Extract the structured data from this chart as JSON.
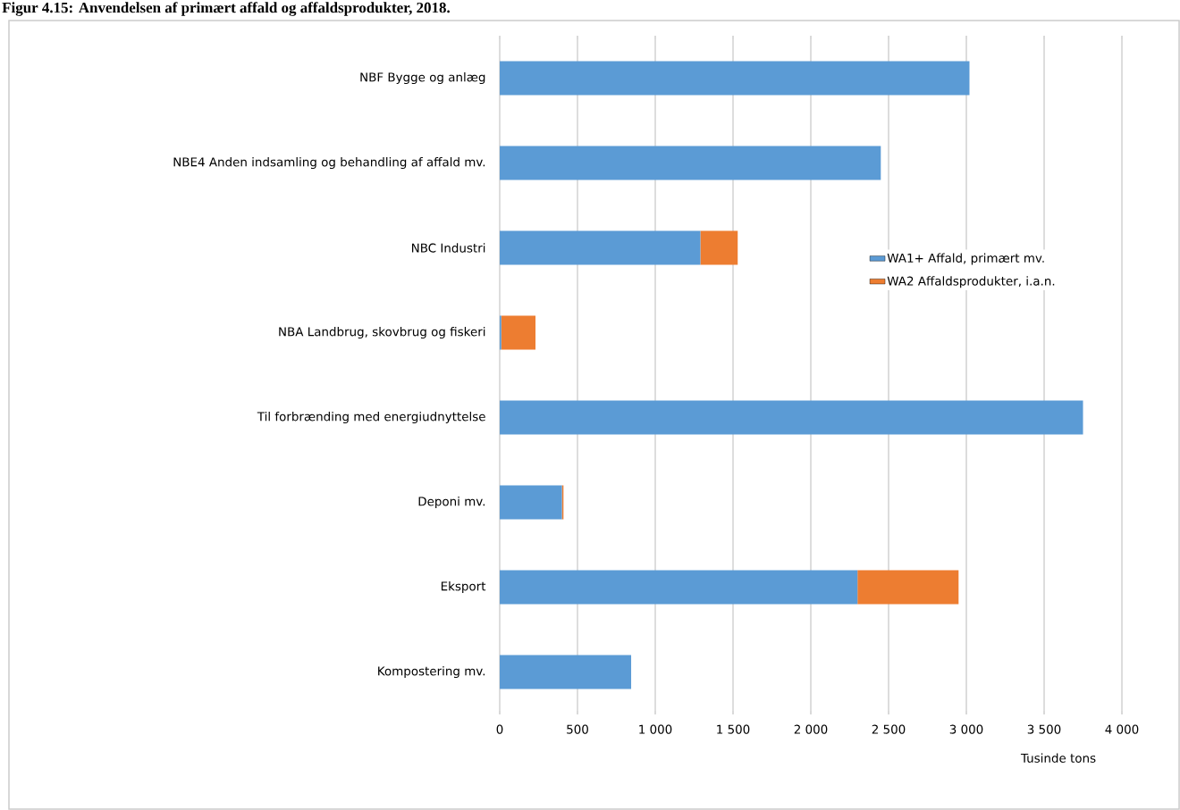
{
  "chart_data": {
    "type": "bar",
    "orientation": "horizontal",
    "stacked": true,
    "title": "Figur 4.15: Anvendelsen af primært affald og affaldsprodukter, 2018.",
    "xlabel": "Tusinde tons",
    "categories": [
      "NBF  Bygge og anlæg",
      "NBE4 Anden indsamling og behandling af affald mv.",
      "NBC  Industri",
      "NBA  Landbrug, skovbrug og fiskeri",
      "Til forbrænding med energiudnyttelse",
      "Deponi mv.",
      "Eksport",
      "Kompostering mv."
    ],
    "series": [
      {
        "name": "WA1+ Affald, primært mv.",
        "color": "#5b9bd5",
        "values": [
          3020,
          2450,
          1290,
          10,
          3750,
          400,
          2300,
          845
        ]
      },
      {
        "name": "WA2 Affaldsprodukter, i.a.n.",
        "color": "#ed7d31",
        "values": [
          0,
          0,
          240,
          220,
          0,
          10,
          650,
          0
        ]
      }
    ],
    "xlim": [
      0,
      4000
    ],
    "xticks": [
      0,
      500,
      {
        "value": 1000,
        "label": "1 000"
      },
      {
        "value": 1500,
        "label": "1 500"
      },
      {
        "value": 2000,
        "label": "2 000"
      },
      {
        "value": 2500,
        "label": "2 500"
      },
      {
        "value": 3000,
        "label": "3 000"
      },
      {
        "value": 3500,
        "label": "3 500"
      },
      {
        "value": 4000,
        "label": "4 000"
      }
    ],
    "grid": "x",
    "legend": "right"
  }
}
